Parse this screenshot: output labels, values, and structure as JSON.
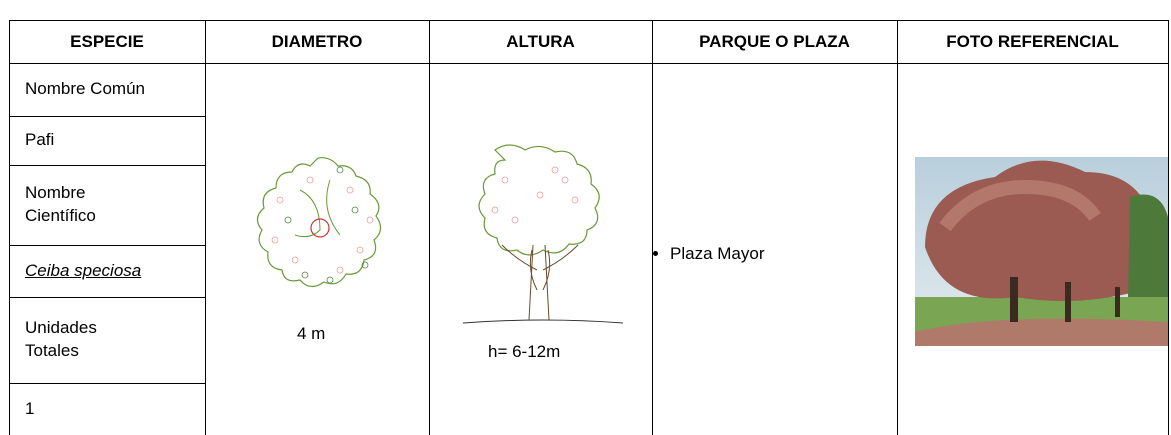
{
  "table": {
    "headers": [
      "ESPECIE",
      "DIAMETRO",
      "ALTURA",
      "PARQUE O PLAZA",
      "FOTO REFERENCIAL"
    ],
    "species_rows": [
      "Nombre Común",
      "Pafi",
      "Nombre Científico",
      "Ceiba speciosa",
      "Unidades Totales",
      "1"
    ],
    "diameter": "4 m",
    "height": "h= 6-12m",
    "parks": [
      "Plaza Mayor"
    ]
  }
}
